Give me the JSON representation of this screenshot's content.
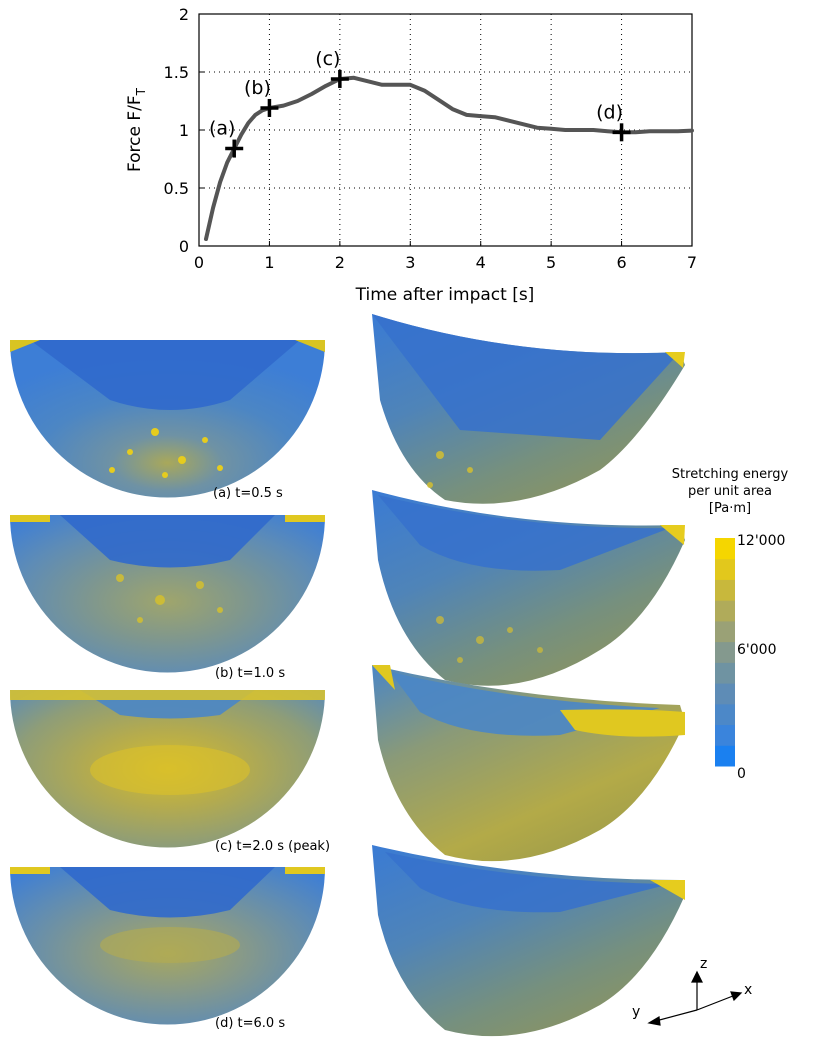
{
  "chart_data": {
    "type": "line",
    "title": "",
    "xlabel": "Time after impact [s]",
    "ylabel_main": "Force F/F",
    "ylabel_sub": "T",
    "xlim": [
      0,
      7
    ],
    "ylim": [
      0,
      2
    ],
    "xticks": [
      0,
      1,
      2,
      3,
      4,
      5,
      6,
      7
    ],
    "yticks": [
      0,
      0.5,
      1,
      1.5,
      2
    ],
    "ytick_labels": [
      "0",
      "0.5",
      "1",
      "1.5",
      "2"
    ],
    "grid": true,
    "line_color": "#555555",
    "series": [
      {
        "x": [
          0.1,
          0.2,
          0.3,
          0.4,
          0.5,
          0.6,
          0.7,
          0.8,
          0.9,
          1.0,
          1.2,
          1.4,
          1.6,
          1.8,
          2.0,
          2.2,
          2.4,
          2.6,
          2.8,
          3.0,
          3.2,
          3.4,
          3.6,
          3.8,
          4.0,
          4.2,
          4.4,
          4.6,
          4.8,
          5.0,
          5.2,
          5.4,
          5.6,
          5.8,
          6.0,
          6.2,
          6.4,
          6.6,
          6.8,
          7.0
        ],
        "y": [
          0.06,
          0.33,
          0.55,
          0.72,
          0.84,
          0.96,
          1.06,
          1.13,
          1.17,
          1.19,
          1.21,
          1.25,
          1.31,
          1.38,
          1.44,
          1.45,
          1.42,
          1.39,
          1.39,
          1.39,
          1.34,
          1.26,
          1.18,
          1.13,
          1.12,
          1.11,
          1.08,
          1.05,
          1.02,
          1.01,
          1.0,
          1.0,
          1.0,
          0.99,
          0.98,
          0.98,
          0.99,
          0.99,
          0.99,
          0.995
        ]
      }
    ],
    "markers": [
      {
        "label": "(a)",
        "x": 0.5,
        "y": 0.84
      },
      {
        "label": "(b)",
        "x": 1.0,
        "y": 1.19
      },
      {
        "label": "(c)",
        "x": 2.0,
        "y": 1.44
      },
      {
        "label": "(d)",
        "x": 6.0,
        "y": 0.98
      }
    ]
  },
  "panels": [
    {
      "caption": "(a) t=0.5 s",
      "level": 0.15
    },
    {
      "caption": "(b) t=1.0 s",
      "level": 0.4
    },
    {
      "caption": "(c) t=2.0 s (peak)",
      "level": 0.75
    },
    {
      "caption": "(d) t=6.0 s",
      "level": 0.45
    }
  ],
  "colorbar": {
    "title_lines": [
      "Stretching energy",
      "per unit area",
      "[Pa·m]"
    ],
    "tick_max": "12'000",
    "tick_mid": "6'000",
    "tick_min": "0",
    "colors": [
      "#1a80f0",
      "#3a84dc",
      "#4c88c8",
      "#5e8cb6",
      "#6f93a2",
      "#84998e",
      "#9aa176",
      "#b0ab5a",
      "#c8b83c",
      "#e2c81c",
      "#f5d600"
    ]
  },
  "axes_icon": {
    "x": "x",
    "y": "y",
    "z": "z"
  },
  "colors": {
    "blue_deep": "#2f6ec8",
    "blue_mid": "#4a86c6",
    "olive": "#8d9a7a",
    "yellow": "#e6cc1e"
  }
}
